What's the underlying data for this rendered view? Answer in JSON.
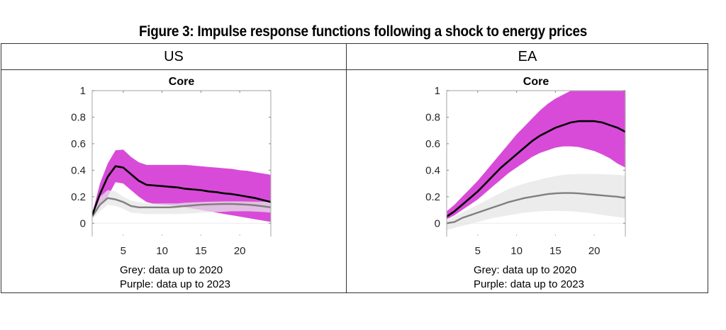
{
  "figure": {
    "title": "Figure 3: Impulse response functions following a shock to energy prices"
  },
  "table": {
    "headers": [
      "US",
      "EA"
    ]
  },
  "legend": {
    "grey": "Grey: data up to 2020",
    "purple": "Purple: data up to 2023"
  },
  "colors": {
    "purple_band": "#D84BD8",
    "grey_band": "#E6E6E6",
    "black_line": "#000000",
    "grey_line": "#7F7F7F",
    "axis": "#B3B3B3"
  },
  "chart_data": [
    {
      "type": "line",
      "panel": "US",
      "title": "Core",
      "xlabel": "",
      "ylabel": "",
      "xlim": [
        1,
        24
      ],
      "ylim": [
        -0.1,
        1
      ],
      "xticks": [
        5,
        10,
        15,
        20
      ],
      "yticks": [
        0,
        0.2,
        0.4,
        0.6,
        0.8,
        1
      ],
      "ytick_labels": [
        "0",
        "0.2",
        "0.4",
        "0.6",
        "0.8",
        "1"
      ],
      "grid": false,
      "x": [
        1,
        2,
        3,
        4,
        5,
        6,
        7,
        8,
        9,
        10,
        11,
        12,
        13,
        14,
        15,
        16,
        17,
        18,
        19,
        20,
        21,
        22,
        23,
        24
      ],
      "series": [
        {
          "name": "Purple: data up to 2023 (median)",
          "role": "line",
          "color": "#000000",
          "values": [
            0.06,
            0.22,
            0.35,
            0.43,
            0.42,
            0.37,
            0.32,
            0.29,
            0.285,
            0.28,
            0.275,
            0.27,
            0.26,
            0.255,
            0.25,
            0.24,
            0.235,
            0.225,
            0.22,
            0.21,
            0.2,
            0.19,
            0.175,
            0.16
          ]
        },
        {
          "name": "Purple: data up to 2023 (upper band)",
          "role": "band_upper",
          "color": "#D84BD8",
          "values": [
            0.07,
            0.3,
            0.45,
            0.55,
            0.555,
            0.5,
            0.46,
            0.44,
            0.44,
            0.44,
            0.44,
            0.44,
            0.44,
            0.435,
            0.43,
            0.425,
            0.42,
            0.415,
            0.41,
            0.4,
            0.395,
            0.385,
            0.375,
            0.365
          ]
        },
        {
          "name": "Purple: data up to 2023 (lower band)",
          "role": "band_lower",
          "color": "#D84BD8",
          "values": [
            0.05,
            0.13,
            0.2,
            0.31,
            0.3,
            0.25,
            0.2,
            0.16,
            0.145,
            0.14,
            0.135,
            0.13,
            0.12,
            0.11,
            0.1,
            0.09,
            0.08,
            0.07,
            0.06,
            0.05,
            0.04,
            0.03,
            0.02,
            0.01
          ]
        },
        {
          "name": "Grey: data up to 2020 (median)",
          "role": "line",
          "color": "#7F7F7F",
          "values": [
            0.05,
            0.14,
            0.19,
            0.18,
            0.16,
            0.13,
            0.12,
            0.12,
            0.12,
            0.12,
            0.12,
            0.125,
            0.13,
            0.135,
            0.14,
            0.142,
            0.144,
            0.145,
            0.145,
            0.143,
            0.14,
            0.135,
            0.128,
            0.12
          ]
        },
        {
          "name": "Grey: data up to 2020 (upper band)",
          "role": "band_upper",
          "color": "#E6E6E6",
          "values": [
            0.06,
            0.2,
            0.25,
            0.24,
            0.2,
            0.17,
            0.16,
            0.15,
            0.15,
            0.15,
            0.15,
            0.15,
            0.155,
            0.158,
            0.16,
            0.162,
            0.164,
            0.165,
            0.165,
            0.165,
            0.164,
            0.163,
            0.162,
            0.16
          ]
        },
        {
          "name": "Grey: data up to 2020 (lower band)",
          "role": "band_lower",
          "color": "#E6E6E6",
          "values": [
            0.03,
            0.09,
            0.14,
            0.13,
            0.11,
            0.08,
            0.075,
            0.07,
            0.07,
            0.07,
            0.07,
            0.07,
            0.072,
            0.075,
            0.08,
            0.082,
            0.085,
            0.087,
            0.09,
            0.09,
            0.09,
            0.088,
            0.085,
            0.08
          ]
        }
      ]
    },
    {
      "type": "line",
      "panel": "EA",
      "title": "Core",
      "xlabel": "",
      "ylabel": "",
      "xlim": [
        1,
        24
      ],
      "ylim": [
        -0.1,
        1
      ],
      "xticks": [
        5,
        10,
        15,
        20
      ],
      "yticks": [
        0,
        0.2,
        0.4,
        0.6,
        0.8,
        1
      ],
      "ytick_labels": [
        "0",
        "0.2",
        "0.4",
        "0.6",
        "0.8",
        "1"
      ],
      "grid": false,
      "x": [
        1,
        2,
        3,
        4,
        5,
        6,
        7,
        8,
        9,
        10,
        11,
        12,
        13,
        14,
        15,
        16,
        17,
        18,
        19,
        20,
        21,
        22,
        23,
        24
      ],
      "series": [
        {
          "name": "Purple: data up to 2023 (median)",
          "role": "line",
          "color": "#000000",
          "values": [
            0.05,
            0.09,
            0.14,
            0.19,
            0.24,
            0.3,
            0.36,
            0.42,
            0.47,
            0.52,
            0.57,
            0.62,
            0.66,
            0.69,
            0.72,
            0.74,
            0.76,
            0.77,
            0.77,
            0.77,
            0.76,
            0.74,
            0.72,
            0.69
          ]
        },
        {
          "name": "Purple: data up to 2023 (upper band)",
          "role": "band_upper",
          "color": "#D84BD8",
          "values": [
            0.09,
            0.14,
            0.2,
            0.26,
            0.32,
            0.39,
            0.46,
            0.53,
            0.6,
            0.67,
            0.73,
            0.79,
            0.85,
            0.9,
            0.94,
            0.97,
            1.0,
            1.0,
            1.0,
            1.0,
            1.0,
            1.0,
            1.0,
            1.0
          ]
        },
        {
          "name": "Purple: data up to 2023 (lower band)",
          "role": "band_lower",
          "color": "#D84BD8",
          "values": [
            0.03,
            0.06,
            0.1,
            0.14,
            0.18,
            0.23,
            0.28,
            0.33,
            0.38,
            0.42,
            0.46,
            0.5,
            0.53,
            0.55,
            0.57,
            0.58,
            0.58,
            0.575,
            0.56,
            0.545,
            0.52,
            0.49,
            0.45,
            0.42
          ]
        },
        {
          "name": "Grey: data up to 2020 (median)",
          "role": "line",
          "color": "#7F7F7F",
          "values": [
            0.0,
            0.01,
            0.04,
            0.06,
            0.08,
            0.1,
            0.12,
            0.14,
            0.16,
            0.175,
            0.19,
            0.2,
            0.21,
            0.22,
            0.225,
            0.228,
            0.228,
            0.225,
            0.22,
            0.215,
            0.21,
            0.205,
            0.2,
            0.19
          ]
        },
        {
          "name": "Grey: data up to 2020 (upper band)",
          "role": "band_upper",
          "color": "#E6E6E6",
          "values": [
            0.02,
            0.05,
            0.08,
            0.11,
            0.14,
            0.17,
            0.2,
            0.23,
            0.26,
            0.28,
            0.3,
            0.315,
            0.33,
            0.345,
            0.355,
            0.365,
            0.37,
            0.372,
            0.372,
            0.372,
            0.37,
            0.368,
            0.365,
            0.36
          ]
        },
        {
          "name": "Grey: data up to 2020 (lower band)",
          "role": "band_lower",
          "color": "#E6E6E6",
          "values": [
            -0.05,
            -0.035,
            -0.02,
            -0.005,
            0.01,
            0.025,
            0.04,
            0.05,
            0.06,
            0.07,
            0.08,
            0.085,
            0.09,
            0.092,
            0.093,
            0.092,
            0.09,
            0.085,
            0.08,
            0.072,
            0.063,
            0.055,
            0.047,
            0.04
          ]
        }
      ]
    }
  ]
}
